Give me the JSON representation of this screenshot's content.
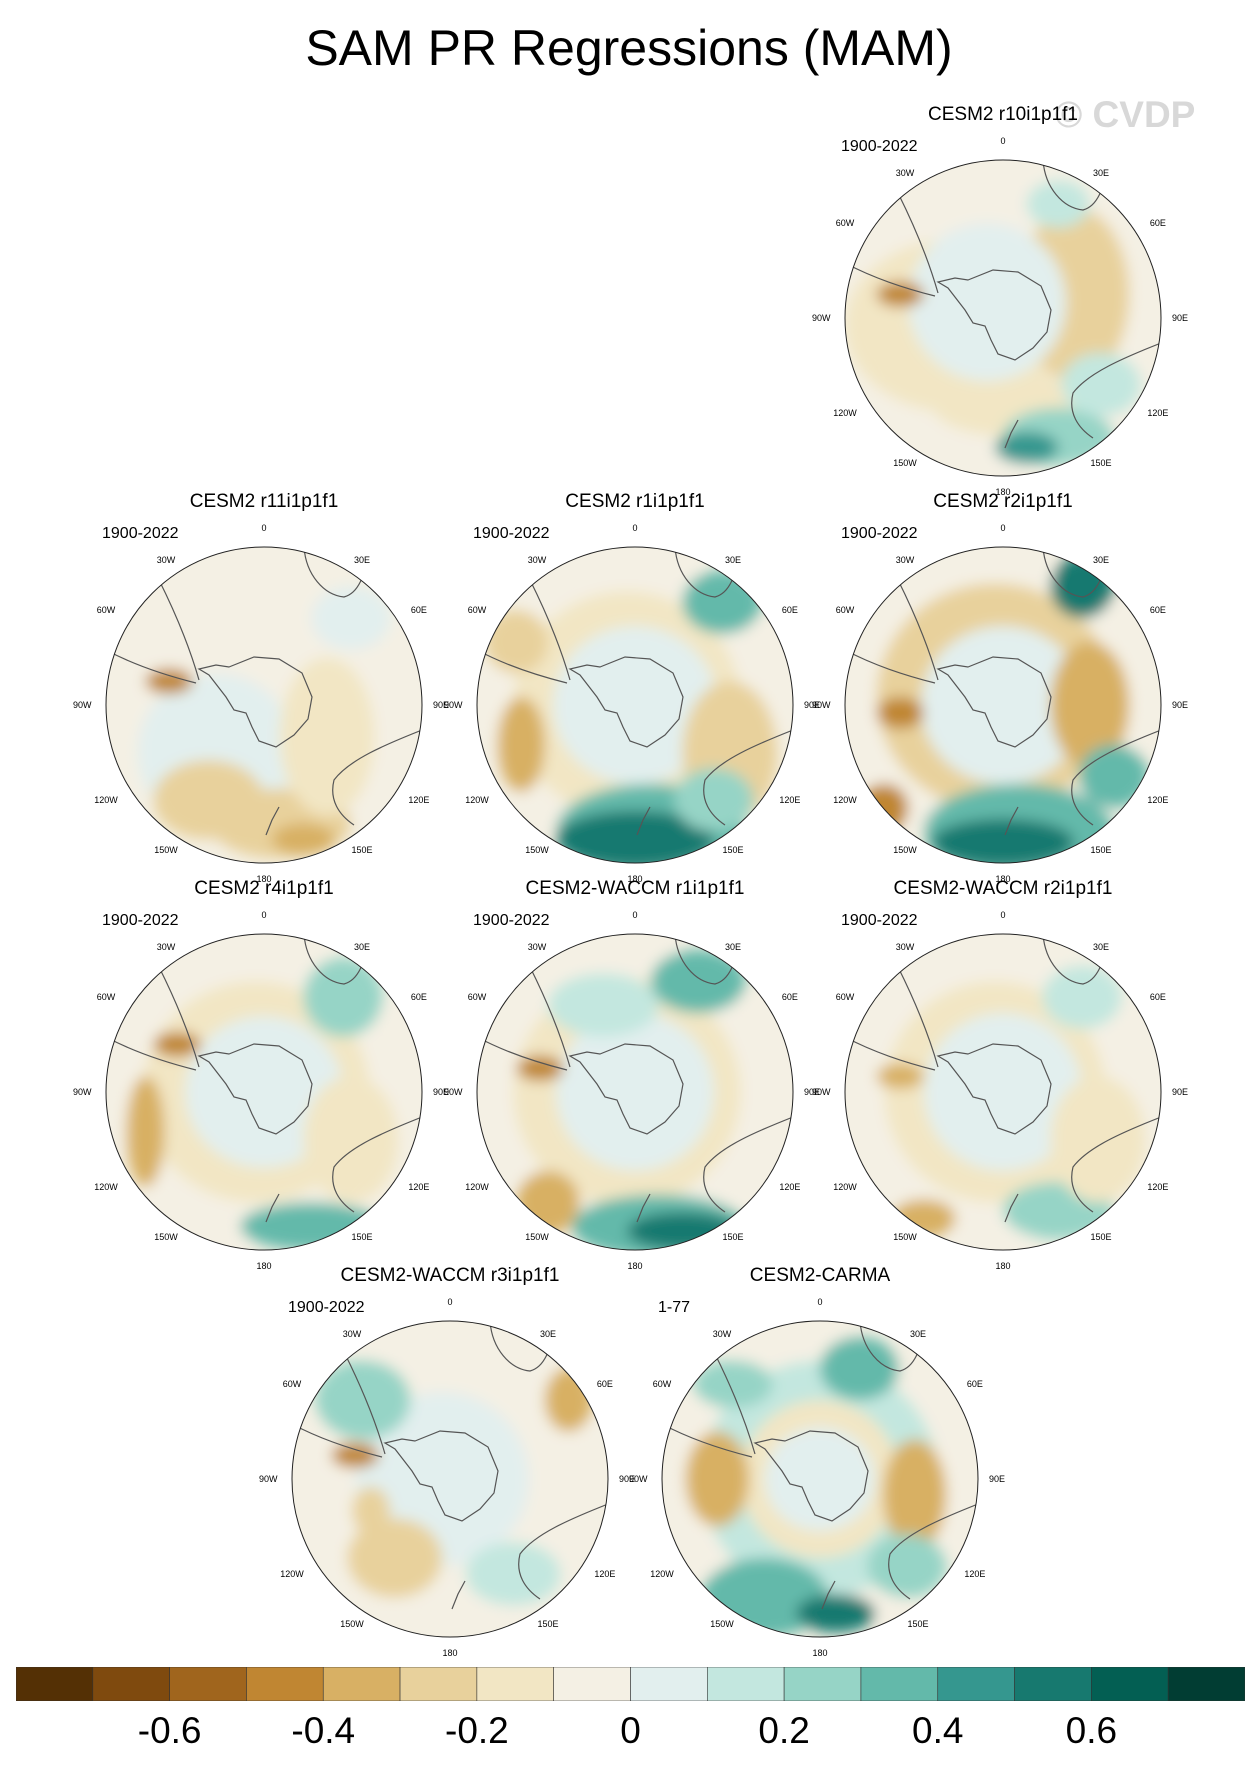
{
  "title": "SAM PR Regressions (MAM)",
  "watermark": "© CVDP",
  "lon_labels": [
    "0",
    "30E",
    "60E",
    "90E",
    "120E",
    "150E",
    "180",
    "150W",
    "120W",
    "90W",
    "60W",
    "30W"
  ],
  "panels": [
    {
      "name": "CESM2 r10i1p1f1",
      "period": "1900-2022"
    },
    {
      "name": "CESM2 r11i1p1f1",
      "period": "1900-2022"
    },
    {
      "name": "CESM2 r1i1p1f1",
      "period": "1900-2022"
    },
    {
      "name": "CESM2 r2i1p1f1",
      "period": "1900-2022"
    },
    {
      "name": "CESM2 r4i1p1f1",
      "period": "1900-2022"
    },
    {
      "name": "CESM2-WACCM r1i1p1f1",
      "period": "1900-2022"
    },
    {
      "name": "CESM2-WACCM r2i1p1f1",
      "period": "1900-2022"
    },
    {
      "name": "CESM2-WACCM r3i1p1f1",
      "period": "1900-2022"
    },
    {
      "name": "CESM2-CARMA",
      "period": "1-77"
    }
  ],
  "colorbar": {
    "colors": [
      "#543005",
      "#7f4a0e",
      "#a0651d",
      "#c08632",
      "#d8b064",
      "#e8d19c",
      "#f2e6c4",
      "#f4f0e4",
      "#e2efee",
      "#c3e7df",
      "#96d4c6",
      "#63b9aa",
      "#35978f",
      "#17796f",
      "#035f53",
      "#013d33"
    ],
    "labels": [
      "-0.6",
      "-0.4",
      "-0.2",
      "0",
      "0.2",
      "0.4",
      "0.6"
    ]
  }
}
